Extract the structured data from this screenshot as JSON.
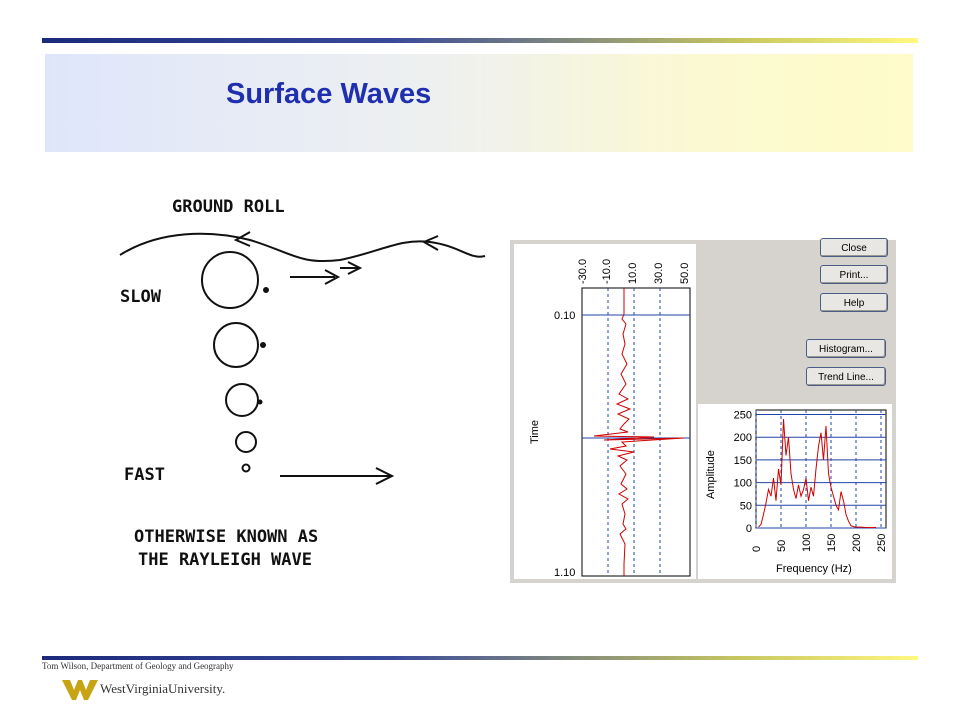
{
  "slide": {
    "title": "Surface Waves",
    "footer": "Tom Wilson, Department of Geology and Geography",
    "logo_text": "WestVirginiaUniversity."
  },
  "sketch": {
    "ground_roll": "GROUND  ROLL",
    "slow": "SLOW",
    "fast": "FAST",
    "otherwise_line1": "OTHERWISE  KNOWN  AS",
    "otherwise_line2": "THE  RAYLEIGH  WAVE"
  },
  "app": {
    "buttons": {
      "close": "Close",
      "print": "Print...",
      "help": "Help",
      "histogram": "Histogram...",
      "trend_line": "Trend Line..."
    },
    "trace_panel": {
      "top_ticks": [
        "-30.0",
        "-10.0",
        "10.0",
        "30.0",
        "50.0"
      ],
      "time_label": "Time",
      "time_ticks": [
        "0.10",
        "1.10"
      ]
    }
  },
  "chart_data": {
    "type": "line",
    "xlabel": "Frequency (Hz)",
    "ylabel": "Amplitude",
    "xlim": [
      0,
      260
    ],
    "ylim": [
      0,
      260
    ],
    "x_ticks": [
      "0",
      "50",
      "100",
      "150",
      "200",
      "250"
    ],
    "y_ticks": [
      "0",
      "50",
      "100",
      "150",
      "200",
      "250"
    ],
    "grid": true,
    "series": [
      {
        "color": "#d00000",
        "x": [
          5,
          10,
          15,
          20,
          25,
          30,
          35,
          40,
          45,
          50,
          55,
          60,
          65,
          70,
          75,
          80,
          85,
          90,
          95,
          100,
          105,
          110,
          115,
          120,
          125,
          130,
          135,
          140,
          145,
          150,
          155,
          160,
          165,
          170,
          175,
          180,
          185,
          190,
          195,
          200,
          210,
          220,
          230,
          240
        ],
        "y": [
          2,
          8,
          30,
          55,
          85,
          70,
          110,
          60,
          130,
          95,
          240,
          160,
          200,
          120,
          85,
          65,
          95,
          70,
          85,
          110,
          60,
          90,
          70,
          130,
          180,
          210,
          150,
          225,
          120,
          90,
          70,
          50,
          40,
          80,
          60,
          30,
          15,
          5,
          3,
          2,
          2,
          1,
          1,
          1
        ]
      }
    ]
  }
}
